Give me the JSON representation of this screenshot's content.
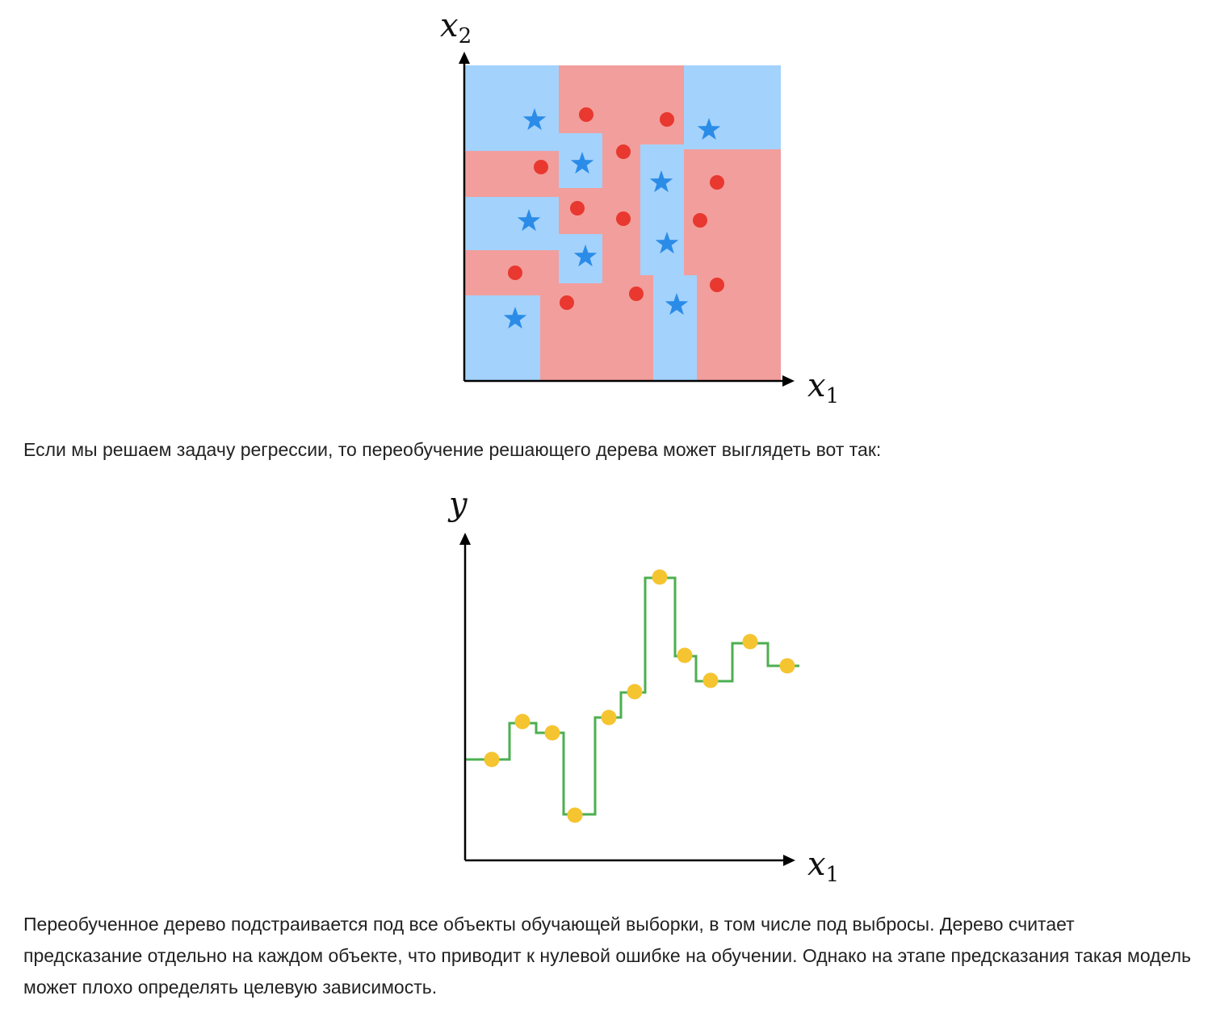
{
  "figure1": {
    "x_axis_label": "x",
    "x_axis_sub": "1",
    "y_axis_label": "x",
    "y_axis_sub": "2",
    "colors": {
      "blue_region": "#a3d2fc",
      "red_region": "#f29e9c",
      "star": "#2b8ce8",
      "dot": "#e8382f"
    },
    "legend_shapes": [
      "star-icon",
      "dot-icon"
    ]
  },
  "paragraph1": "Если мы решаем задачу регрессии, то переобучение решающего дерева может выглядеть вот так:",
  "figure2": {
    "x_axis_label": "x",
    "x_axis_sub": "1",
    "y_axis_label": "y",
    "colors": {
      "step_line": "#4caf50",
      "point": "#f5c431"
    }
  },
  "paragraph2": "Переобученное дерево подстраивается под все объекты обучающей выборки, в том числе под выбросы. Дерево считает предсказание отдельно на каждом объекте, что приводит к нулевой ошибке на обучении. Однако на этапе предсказания такая модель может плохо определять целевую зависимость."
}
